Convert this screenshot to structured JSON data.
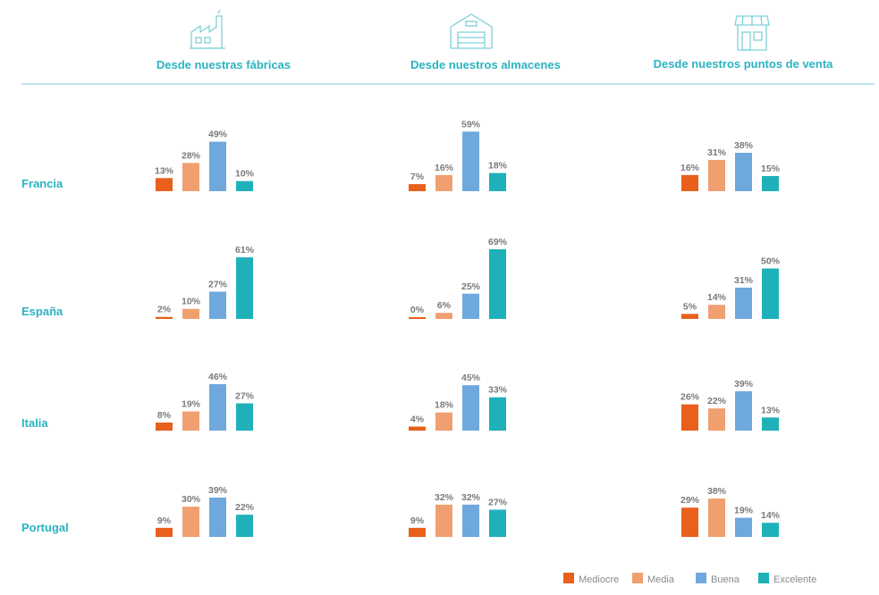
{
  "chart_data": {
    "type": "bar",
    "title": "",
    "columns": [
      "Desde nuestras fábricas",
      "Desde nuestros almacenes",
      "Desde nuestros puntos de venta"
    ],
    "column_icons": [
      "factory-icon",
      "warehouse-icon",
      "store-icon"
    ],
    "rows": [
      "Francia",
      "España",
      "Italia",
      "Portugal"
    ],
    "categories": [
      "Mediocre",
      "Media",
      "Buena",
      "Excelente"
    ],
    "colors": {
      "Mediocre": "#e8601c",
      "Media": "#f0a070",
      "Buena": "#6fa8dc",
      "Excelente": "#1fb1b9"
    },
    "header_line_color": "#a8dfe4",
    "ylim": [
      0,
      100
    ],
    "value_suffix": "%",
    "panels": [
      [
        {
          "values": [
            13,
            28,
            49,
            10
          ]
        },
        {
          "values": [
            7,
            16,
            59,
            18
          ]
        },
        {
          "values": [
            16,
            31,
            38,
            15
          ]
        }
      ],
      [
        {
          "values": [
            2,
            10,
            27,
            61
          ]
        },
        {
          "values": [
            0,
            6,
            25,
            69
          ]
        },
        {
          "values": [
            5,
            14,
            31,
            50
          ]
        }
      ],
      [
        {
          "values": [
            8,
            19,
            46,
            27
          ]
        },
        {
          "values": [
            4,
            18,
            45,
            33
          ]
        },
        {
          "values": [
            26,
            22,
            39,
            13
          ]
        }
      ],
      [
        {
          "values": [
            9,
            30,
            39,
            22
          ]
        },
        {
          "values": [
            9,
            32,
            32,
            27
          ]
        },
        {
          "values": [
            29,
            38,
            19,
            14
          ]
        }
      ]
    ],
    "legend": [
      "Mediocre",
      "Media",
      "Buena",
      "Excelente"
    ],
    "legend_position": "bottom-right"
  }
}
